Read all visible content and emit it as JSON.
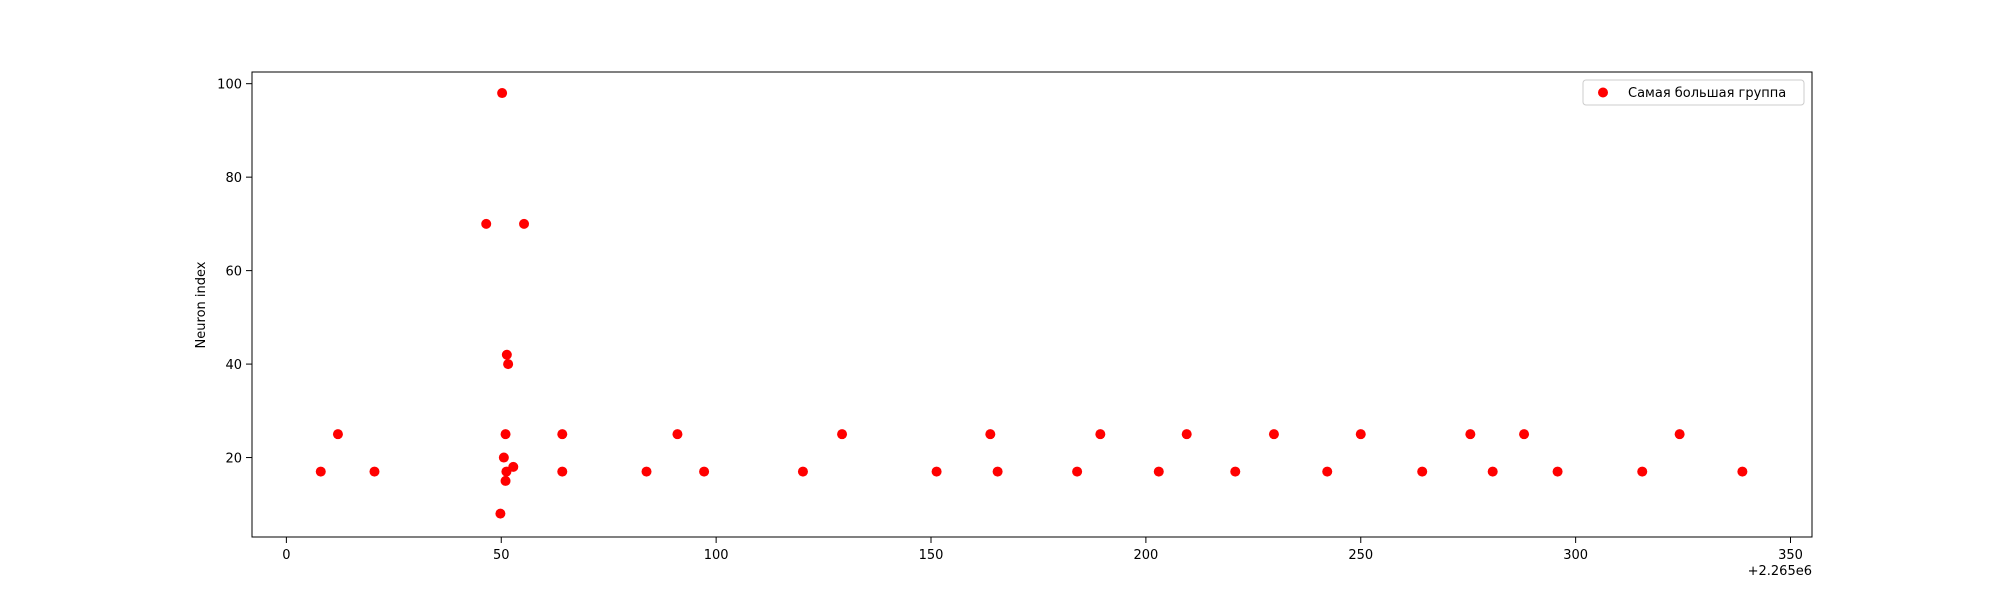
{
  "chart_data": {
    "type": "scatter",
    "title": "",
    "xlabel": "",
    "ylabel": "Neuron index",
    "x_offset_label": "+2.265e6",
    "xlim": [
      -8,
      355
    ],
    "ylim": [
      3,
      102.5
    ],
    "x_ticks": [
      0,
      50,
      100,
      150,
      200,
      250,
      300,
      350
    ],
    "y_ticks": [
      20,
      40,
      60,
      80,
      100
    ],
    "grid": false,
    "legend": {
      "placement": "top-right"
    },
    "series": [
      {
        "name": "Самая большая группа",
        "color": "#ff0000",
        "points": [
          {
            "x": 8,
            "y": 17
          },
          {
            "x": 12,
            "y": 25
          },
          {
            "x": 20.5,
            "y": 17
          },
          {
            "x": 46.5,
            "y": 70
          },
          {
            "x": 49.8,
            "y": 8
          },
          {
            "x": 50.2,
            "y": 98
          },
          {
            "x": 50.6,
            "y": 20
          },
          {
            "x": 51,
            "y": 25
          },
          {
            "x": 51,
            "y": 15
          },
          {
            "x": 51.2,
            "y": 17
          },
          {
            "x": 51.3,
            "y": 42
          },
          {
            "x": 51.6,
            "y": 40
          },
          {
            "x": 52.8,
            "y": 18
          },
          {
            "x": 55.3,
            "y": 70
          },
          {
            "x": 64.2,
            "y": 25
          },
          {
            "x": 64.2,
            "y": 17
          },
          {
            "x": 83.8,
            "y": 17
          },
          {
            "x": 91,
            "y": 25
          },
          {
            "x": 97.2,
            "y": 17
          },
          {
            "x": 120.2,
            "y": 17
          },
          {
            "x": 129.3,
            "y": 25
          },
          {
            "x": 151.3,
            "y": 17
          },
          {
            "x": 163.8,
            "y": 25
          },
          {
            "x": 165.5,
            "y": 17
          },
          {
            "x": 184,
            "y": 17
          },
          {
            "x": 189.4,
            "y": 25
          },
          {
            "x": 203,
            "y": 17
          },
          {
            "x": 209.5,
            "y": 25
          },
          {
            "x": 220.8,
            "y": 17
          },
          {
            "x": 229.8,
            "y": 25
          },
          {
            "x": 242.2,
            "y": 17
          },
          {
            "x": 250,
            "y": 25
          },
          {
            "x": 264.3,
            "y": 17
          },
          {
            "x": 275.5,
            "y": 25
          },
          {
            "x": 280.7,
            "y": 17
          },
          {
            "x": 288,
            "y": 25
          },
          {
            "x": 295.8,
            "y": 17
          },
          {
            "x": 315.5,
            "y": 17
          },
          {
            "x": 324.2,
            "y": 25
          },
          {
            "x": 338.8,
            "y": 17
          }
        ]
      }
    ]
  }
}
